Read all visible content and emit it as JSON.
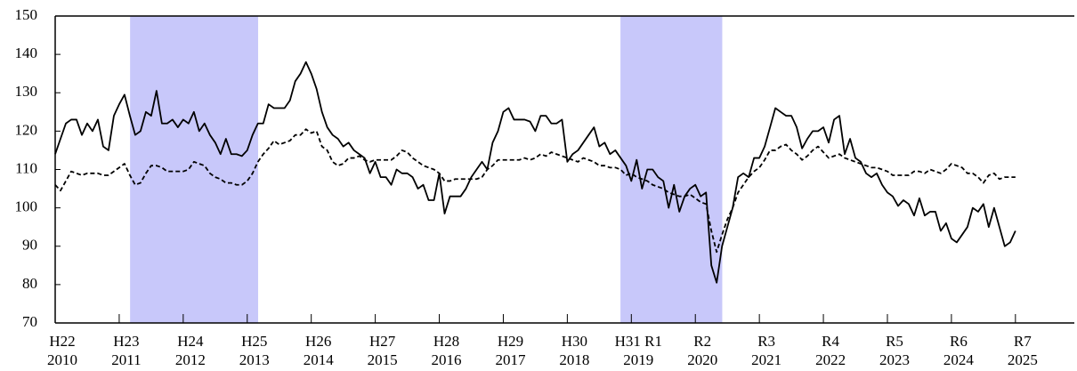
{
  "chart_data": {
    "type": "line",
    "x": [
      2010,
      2010.083,
      2010.167,
      2010.25,
      2010.333,
      2010.417,
      2010.5,
      2010.583,
      2010.667,
      2010.75,
      2010.833,
      2010.917,
      2011,
      2011.083,
      2011.167,
      2011.25,
      2011.333,
      2011.417,
      2011.5,
      2011.583,
      2011.667,
      2011.75,
      2011.833,
      2011.917,
      2012,
      2012.083,
      2012.167,
      2012.25,
      2012.333,
      2012.417,
      2012.5,
      2012.583,
      2012.667,
      2012.75,
      2012.833,
      2012.917,
      2013,
      2013.083,
      2013.167,
      2013.25,
      2013.333,
      2013.417,
      2013.5,
      2013.583,
      2013.667,
      2013.75,
      2013.833,
      2013.917,
      2014,
      2014.083,
      2014.167,
      2014.25,
      2014.333,
      2014.417,
      2014.5,
      2014.583,
      2014.667,
      2014.75,
      2014.833,
      2014.917,
      2015,
      2015.083,
      2015.167,
      2015.25,
      2015.333,
      2015.417,
      2015.5,
      2015.583,
      2015.667,
      2015.75,
      2015.833,
      2015.917,
      2016,
      2016.083,
      2016.167,
      2016.25,
      2016.333,
      2016.417,
      2016.5,
      2016.583,
      2016.667,
      2016.75,
      2016.833,
      2016.917,
      2017,
      2017.083,
      2017.167,
      2017.25,
      2017.333,
      2017.417,
      2017.5,
      2017.583,
      2017.667,
      2017.75,
      2017.833,
      2017.917,
      2018,
      2018.083,
      2018.167,
      2018.25,
      2018.333,
      2018.417,
      2018.5,
      2018.583,
      2018.667,
      2018.75,
      2018.833,
      2018.917,
      2019,
      2019.083,
      2019.167,
      2019.25,
      2019.333,
      2019.417,
      2019.5,
      2019.583,
      2019.667,
      2019.75,
      2019.833,
      2019.917,
      2020,
      2020.083,
      2020.167,
      2020.25,
      2020.333,
      2020.417,
      2020.5,
      2020.583,
      2020.667,
      2020.75,
      2020.833,
      2020.917,
      2021,
      2021.083,
      2021.167,
      2021.25,
      2021.333,
      2021.417,
      2021.5,
      2021.583,
      2021.667,
      2021.75,
      2021.833,
      2021.917,
      2022,
      2022.083,
      2022.167,
      2022.25,
      2022.333,
      2022.417,
      2022.5,
      2022.583,
      2022.667,
      2022.75,
      2022.833,
      2022.917,
      2023,
      2023.083,
      2023.167,
      2023.25,
      2023.333,
      2023.417,
      2023.5,
      2023.583,
      2023.667,
      2023.75,
      2023.833,
      2023.917,
      2024,
      2024.083,
      2024.167,
      2024.25,
      2024.333,
      2024.417,
      2024.5,
      2024.583,
      2024.667,
      2024.75,
      2024.833,
      2024.917,
      2025
    ],
    "series": [
      {
        "color": "#000000",
        "dashed": false,
        "values": [
          114,
          118,
          122,
          123,
          123,
          119,
          122,
          120,
          123,
          116,
          115,
          124,
          127,
          129.5,
          124,
          119,
          120,
          125,
          124,
          130.5,
          122,
          122,
          123,
          121,
          123,
          122,
          125,
          120,
          122,
          119,
          117,
          114,
          118,
          114,
          114,
          113.5,
          115,
          119,
          122,
          122,
          127,
          126,
          126,
          126,
          128,
          133,
          135,
          138,
          135,
          131,
          125,
          121,
          119,
          118,
          116,
          117,
          115,
          114,
          113,
          109,
          112,
          108,
          108,
          106,
          110,
          109,
          109,
          108,
          105,
          106,
          102,
          102,
          109,
          98.5,
          103,
          103,
          103,
          105,
          108,
          110,
          112,
          110,
          117,
          120,
          125,
          126,
          123,
          123,
          123,
          122.5,
          120,
          124,
          124,
          122,
          122,
          123,
          112,
          114,
          115,
          117,
          119,
          121,
          116,
          117,
          114,
          115,
          113,
          111,
          107,
          112.5,
          105,
          110,
          110,
          108,
          107,
          100,
          106,
          99,
          103,
          105,
          106,
          103,
          104,
          85,
          80.5,
          90,
          95,
          100,
          108,
          109,
          108,
          113,
          113,
          116,
          121,
          126,
          125,
          124,
          124,
          121,
          115.5,
          118,
          120,
          120,
          121,
          117,
          123,
          124,
          114,
          118,
          113,
          112,
          109,
          108,
          109,
          106,
          104,
          103,
          100.5,
          102,
          101,
          98,
          102.5,
          98,
          99,
          99,
          94,
          96,
          92,
          91,
          93,
          95,
          100,
          99,
          101,
          95,
          100,
          95,
          90,
          91,
          94
        ]
      },
      {
        "color": "#000000",
        "dashed": true,
        "values": [
          106,
          104.5,
          107,
          109.5,
          109,
          108.5,
          109,
          109,
          109,
          108.5,
          108.5,
          109.5,
          110.5,
          111.5,
          108.5,
          106,
          106.5,
          109,
          111,
          111,
          110.5,
          109.5,
          109.5,
          109.5,
          109.5,
          110,
          112,
          111.5,
          111,
          109,
          108,
          107.5,
          106.5,
          106.5,
          106,
          106,
          107,
          109,
          112,
          114,
          115.5,
          117.5,
          116.5,
          117,
          117.5,
          119,
          119,
          120.5,
          119.5,
          120,
          116,
          115,
          112,
          111,
          111.5,
          113,
          113,
          113.5,
          112.5,
          112,
          112.5,
          112.5,
          112.5,
          112.5,
          113.5,
          115,
          114.5,
          113,
          112,
          111,
          110.5,
          110,
          109,
          107,
          107,
          107.5,
          107.5,
          107.5,
          107.5,
          107.5,
          108,
          110,
          111,
          112.5,
          112.5,
          112.5,
          112.5,
          112.5,
          113,
          112.5,
          113,
          114,
          113.5,
          114.5,
          114,
          113.5,
          113,
          112.5,
          112,
          113,
          112.5,
          112,
          111,
          111,
          110.5,
          110.5,
          110,
          108.5,
          109,
          108,
          107.5,
          107,
          106,
          105.5,
          105,
          104,
          103.5,
          103,
          103,
          103.5,
          102.5,
          101.5,
          101,
          94,
          88.5,
          93,
          97,
          100,
          104,
          106,
          108,
          109.5,
          110.5,
          112.5,
          115,
          115,
          116,
          116.5,
          115,
          114,
          112.5,
          113.5,
          115,
          116,
          114.5,
          113,
          113.5,
          114,
          113,
          112.5,
          112,
          111.5,
          111,
          110.5,
          110.5,
          110,
          109.5,
          108.5,
          108.5,
          108.5,
          108.5,
          109.5,
          109.5,
          109,
          110,
          109.5,
          109,
          110,
          111.5,
          111,
          110.5,
          109,
          109,
          108,
          106.5,
          108.5,
          109,
          107.5,
          108,
          108,
          108
        ]
      }
    ],
    "shaded_periods": [
      [
        2011.17,
        2013.17
      ],
      [
        2018.83,
        2020.42
      ]
    ],
    "shade_color": "#c8c8fa",
    "xlim": [
      2010,
      2025.92
    ],
    "xticks": [
      2010,
      2011,
      2012,
      2013,
      2014,
      2015,
      2016,
      2017,
      2018,
      2019,
      2020,
      2021,
      2022,
      2023,
      2024,
      2025
    ],
    "era_labels": [
      "H22",
      "H23",
      "H24",
      "H25",
      "H26",
      "H27",
      "H28",
      "H29",
      "H30",
      "H31 R1",
      "R2",
      "R3",
      "R4",
      "R5",
      "R6",
      "R7"
    ],
    "ylim": [
      70,
      150
    ],
    "yticks": [
      70,
      80,
      90,
      100,
      110,
      120,
      130,
      140,
      150
    ],
    "grid": false
  }
}
